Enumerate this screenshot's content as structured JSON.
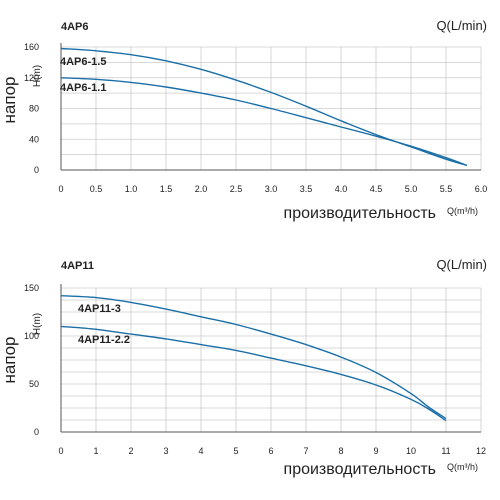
{
  "chart_data": [
    {
      "type": "line",
      "title": "4AP6",
      "unit_label": "Q(L/min)",
      "ylabel_main": "напор",
      "ylabel_sub": "H(m)",
      "xlabel_main": "производительность",
      "xlabel_sub": "Q(m³/h)",
      "xlim": [
        0,
        6
      ],
      "ylim": [
        0,
        160
      ],
      "xticks": [
        "0",
        "0.5",
        "1.0",
        "1.5",
        "2.0",
        "2.5",
        "3.0",
        "3.5",
        "4.0",
        "4.5",
        "5.0",
        "5.5",
        "6.0"
      ],
      "yticks": [
        "0",
        "40",
        "80",
        "120",
        "160"
      ],
      "series": [
        {
          "name": "4AP6-1.5",
          "x": [
            0,
            0.5,
            1.0,
            1.5,
            2.0,
            2.5,
            3.0,
            3.5,
            4.0,
            4.5,
            5.0,
            5.5,
            5.8
          ],
          "y": [
            158,
            155,
            150,
            142,
            131,
            117,
            101,
            83,
            64,
            46,
            30,
            14,
            6
          ]
        },
        {
          "name": "4AP6-1.1",
          "x": [
            0,
            0.5,
            1.0,
            1.5,
            2.0,
            2.5,
            3.0,
            3.5,
            4.0,
            4.5,
            5.0,
            5.5,
            5.8
          ],
          "y": [
            120,
            118,
            114,
            108,
            100,
            91,
            80,
            68,
            56,
            44,
            31,
            16,
            6
          ]
        }
      ]
    },
    {
      "type": "line",
      "title": "4AP11",
      "unit_label": "Q(L/min)",
      "ylabel_main": "напор",
      "ylabel_sub": "H(m)",
      "xlabel_main": "производительность",
      "xlabel_sub": "Q(m³/h)",
      "xlim": [
        0,
        12
      ],
      "ylim": [
        0,
        150
      ],
      "xticks": [
        "0",
        "1",
        "2",
        "3",
        "4",
        "5",
        "6",
        "7",
        "8",
        "9",
        "10",
        "11",
        "12"
      ],
      "yticks": [
        "0",
        "50",
        "100",
        "150"
      ],
      "series": [
        {
          "name": "4AP11-3",
          "x": [
            0,
            1,
            2,
            3,
            4,
            5,
            6,
            7,
            8,
            9,
            10,
            10.5,
            11
          ],
          "y": [
            142,
            140,
            135,
            128,
            120,
            112,
            102,
            91,
            78,
            62,
            40,
            26,
            14
          ]
        },
        {
          "name": "4AP11-2.2",
          "x": [
            0,
            1,
            2,
            3,
            4,
            5,
            6,
            7,
            8,
            9,
            10,
            10.5,
            11
          ],
          "y": [
            110,
            107,
            102,
            97,
            91,
            85,
            77,
            69,
            60,
            49,
            34,
            24,
            12
          ]
        }
      ]
    }
  ],
  "colors": {
    "line": "#1b6fa8",
    "grid": "#cccccc",
    "text": "#222222"
  }
}
